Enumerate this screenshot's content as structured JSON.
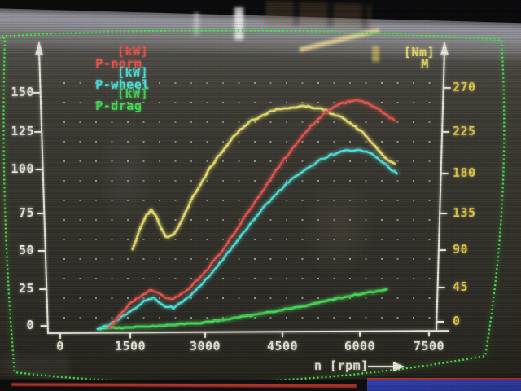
{
  "chart_data": {
    "type": "line",
    "title": "",
    "grid": "dotted",
    "legend_position": "top-left",
    "x_axis": {
      "label": "n [rpm]",
      "arrow_glyph": "right-arrow",
      "min": 0,
      "max": 7500,
      "ticks": [
        "0",
        "1500",
        "3000",
        "4500",
        "6000",
        "7500"
      ]
    },
    "y_axis_left": {
      "unit": "kW",
      "arrow_glyph": "up-arrow",
      "min": 0,
      "max": 150,
      "ticks": [
        "150",
        "125",
        "100",
        "75",
        "50",
        "25",
        "0"
      ]
    },
    "y_axis_right": {
      "symbol": "M",
      "unit": "[Nm]",
      "arrow_glyph": "up-arrow",
      "min": 0,
      "max": 270,
      "ticks": [
        "270",
        "225",
        "180",
        "135",
        "90",
        "45",
        "0"
      ]
    },
    "series": [
      {
        "name": "P-norm",
        "unit": "[kW]",
        "axis": "left",
        "color": "#e8564e",
        "points": [
          [
            1000,
            1
          ],
          [
            1100,
            5
          ],
          [
            1250,
            11
          ],
          [
            1400,
            16
          ],
          [
            1550,
            20
          ],
          [
            1700,
            23
          ],
          [
            1850,
            25
          ],
          [
            1975,
            23.5
          ],
          [
            2100,
            21
          ],
          [
            2250,
            19.5
          ],
          [
            2400,
            21.5
          ],
          [
            2550,
            25
          ],
          [
            2700,
            29
          ],
          [
            2850,
            34
          ],
          [
            3000,
            39
          ],
          [
            3150,
            45
          ],
          [
            3300,
            51
          ],
          [
            3450,
            58
          ],
          [
            3600,
            65
          ],
          [
            3750,
            72
          ],
          [
            3900,
            79
          ],
          [
            4050,
            86
          ],
          [
            4200,
            93
          ],
          [
            4350,
            100
          ],
          [
            4500,
            107
          ],
          [
            4650,
            113
          ],
          [
            4800,
            119
          ],
          [
            4950,
            125
          ],
          [
            5100,
            130
          ],
          [
            5250,
            135
          ],
          [
            5400,
            139
          ],
          [
            5550,
            142
          ],
          [
            5700,
            144.5
          ],
          [
            5850,
            146
          ],
          [
            6000,
            146.5
          ],
          [
            6150,
            146
          ],
          [
            6300,
            144.5
          ],
          [
            6450,
            142
          ],
          [
            6600,
            138.5
          ],
          [
            6700,
            136
          ],
          [
            6800,
            134
          ]
        ]
      },
      {
        "name": "P-wheel",
        "unit": "[kW]",
        "axis": "left",
        "color": "#4fe3da",
        "points": [
          [
            760,
            0
          ],
          [
            900,
            2
          ],
          [
            1050,
            4
          ],
          [
            1200,
            7
          ],
          [
            1350,
            10
          ],
          [
            1500,
            13
          ],
          [
            1650,
            17
          ],
          [
            1800,
            20
          ],
          [
            1900,
            21
          ],
          [
            2000,
            18
          ],
          [
            2150,
            15
          ],
          [
            2300,
            14
          ],
          [
            2450,
            17
          ],
          [
            2600,
            21
          ],
          [
            2750,
            25
          ],
          [
            2900,
            30
          ],
          [
            3050,
            35
          ],
          [
            3200,
            41
          ],
          [
            3350,
            47
          ],
          [
            3500,
            53
          ],
          [
            3650,
            59
          ],
          [
            3800,
            65
          ],
          [
            3950,
            71
          ],
          [
            4100,
            77
          ],
          [
            4250,
            82
          ],
          [
            4400,
            87
          ],
          [
            4550,
            92
          ],
          [
            4700,
            96
          ],
          [
            4900,
            101
          ],
          [
            5100,
            105
          ],
          [
            5300,
            109
          ],
          [
            5500,
            112
          ],
          [
            5700,
            114
          ],
          [
            5900,
            115
          ],
          [
            6100,
            115
          ],
          [
            6300,
            113
          ],
          [
            6450,
            110
          ],
          [
            6600,
            106
          ],
          [
            6750,
            102
          ],
          [
            6850,
            100
          ]
        ]
      },
      {
        "name": "P-drag",
        "unit": "[kW]",
        "axis": "left",
        "color": "#46d957",
        "points": [
          [
            800,
            1
          ],
          [
            1200,
            1.5
          ],
          [
            1600,
            2
          ],
          [
            2000,
            2.5
          ],
          [
            2400,
            3.5
          ],
          [
            2800,
            4.5
          ],
          [
            3200,
            6
          ],
          [
            3600,
            8
          ],
          [
            4000,
            10
          ],
          [
            4400,
            12
          ],
          [
            4800,
            14.5
          ],
          [
            5200,
            17
          ],
          [
            5600,
            20
          ],
          [
            6000,
            22.5
          ],
          [
            6300,
            24
          ],
          [
            6640,
            26
          ]
        ]
      },
      {
        "name": "M",
        "unit": "[Nm]",
        "axis": "right",
        "color": "#e6df6e",
        "points": [
          [
            1470,
            89
          ],
          [
            1550,
            100
          ],
          [
            1650,
            115
          ],
          [
            1750,
            127
          ],
          [
            1850,
            134
          ],
          [
            1950,
            128
          ],
          [
            2050,
            113
          ],
          [
            2150,
            104
          ],
          [
            2250,
            104
          ],
          [
            2350,
            109
          ],
          [
            2450,
            119
          ],
          [
            2550,
            131
          ],
          [
            2650,
            143
          ],
          [
            2750,
            153
          ],
          [
            2900,
            168
          ],
          [
            3050,
            181
          ],
          [
            3200,
            193
          ],
          [
            3350,
            204
          ],
          [
            3500,
            215
          ],
          [
            3650,
            224
          ],
          [
            3800,
            231
          ],
          [
            3950,
            236
          ],
          [
            4100,
            241
          ],
          [
            4250,
            244
          ],
          [
            4400,
            247
          ],
          [
            4550,
            249
          ],
          [
            4700,
            250
          ],
          [
            4850,
            251
          ],
          [
            5000,
            251
          ],
          [
            5150,
            250
          ],
          [
            5300,
            248
          ],
          [
            5450,
            245
          ],
          [
            5600,
            241
          ],
          [
            5750,
            237
          ],
          [
            5900,
            232
          ],
          [
            6050,
            226
          ],
          [
            6200,
            218
          ],
          [
            6350,
            209
          ],
          [
            6500,
            200
          ],
          [
            6650,
            191
          ],
          [
            6800,
            186
          ]
        ]
      }
    ],
    "colors": {
      "axis_white": "#eceade",
      "right_tick_yellow": "#dcc94e",
      "screen_border_green": "#4be44b",
      "grid_dot": "#e6e6da"
    }
  }
}
